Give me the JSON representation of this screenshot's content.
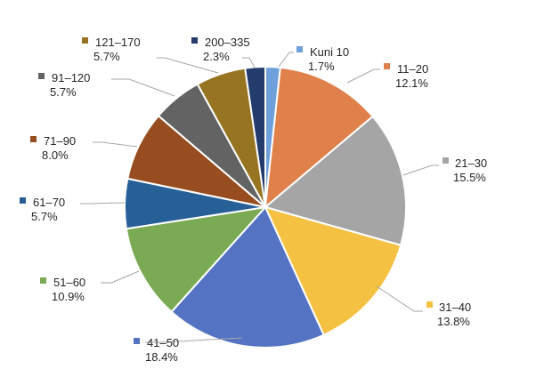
{
  "chart_data": {
    "type": "pie",
    "title": "",
    "slices": [
      {
        "label": "Kuni 10",
        "value": 1.7,
        "display": "1.7%",
        "color": "#6fa0dc"
      },
      {
        "label": "11–20",
        "value": 12.1,
        "display": "12.1%",
        "color": "#e0804a"
      },
      {
        "label": "21–30",
        "value": 15.5,
        "display": "15.5%",
        "color": "#a5a5a5"
      },
      {
        "label": "31–40",
        "value": 13.8,
        "display": "13.8%",
        "color": "#f4c142"
      },
      {
        "label": "41–50",
        "value": 18.4,
        "display": "18.4%",
        "color": "#5473c3"
      },
      {
        "label": "51–60",
        "value": 10.9,
        "display": "10.9%",
        "color": "#7aab54"
      },
      {
        "label": "61–70",
        "value": 5.7,
        "display": "5.7%",
        "color": "#275f97"
      },
      {
        "label": "71–90",
        "value": 8.0,
        "display": "8.0%",
        "color": "#974d20"
      },
      {
        "label": "91–120",
        "value": 5.7,
        "display": "5.7%",
        "color": "#636363"
      },
      {
        "label": "121–170",
        "value": 5.7,
        "display": "5.7%",
        "color": "#977422"
      },
      {
        "label": "200–335",
        "value": 2.3,
        "display": "2.3%",
        "color": "#233c6c"
      }
    ]
  }
}
